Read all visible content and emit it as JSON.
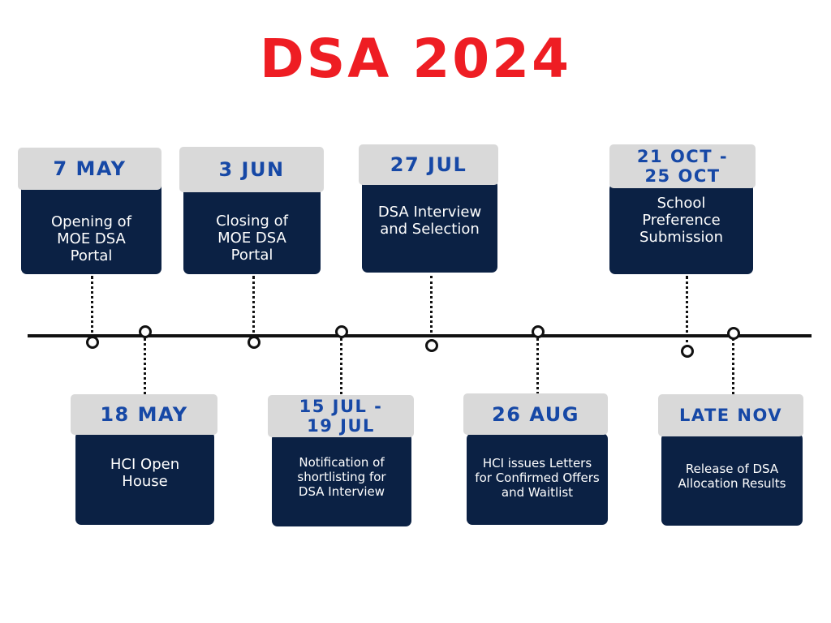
{
  "title": "DSA 2024",
  "colors": {
    "title": "#ee1d23",
    "card_body": "#0b2144",
    "date_tab": "#d9d9d9",
    "date_text": "#1648a6",
    "line": "#111111"
  },
  "events_top": [
    {
      "date": "7 May",
      "description": "Opening of MOE DSA Portal"
    },
    {
      "date": "3 Jun",
      "description": "Closing of MOE DSA Portal"
    },
    {
      "date": "27 Jul",
      "description": "DSA Interview and Selection"
    },
    {
      "date": "21 Oct - 25 Oct",
      "description": "School Preference Submission"
    }
  ],
  "events_bottom": [
    {
      "date": "18 May",
      "description": "HCI Open House"
    },
    {
      "date": "15 Jul - 19 Jul",
      "description": "Notification of shortlisting for DSA Interview"
    },
    {
      "date": "26 Aug",
      "description": "HCI issues Letters for Confirmed Offers and Waitlist"
    },
    {
      "date": "Late Nov",
      "description": "Release of DSA Allocation Results"
    }
  ]
}
